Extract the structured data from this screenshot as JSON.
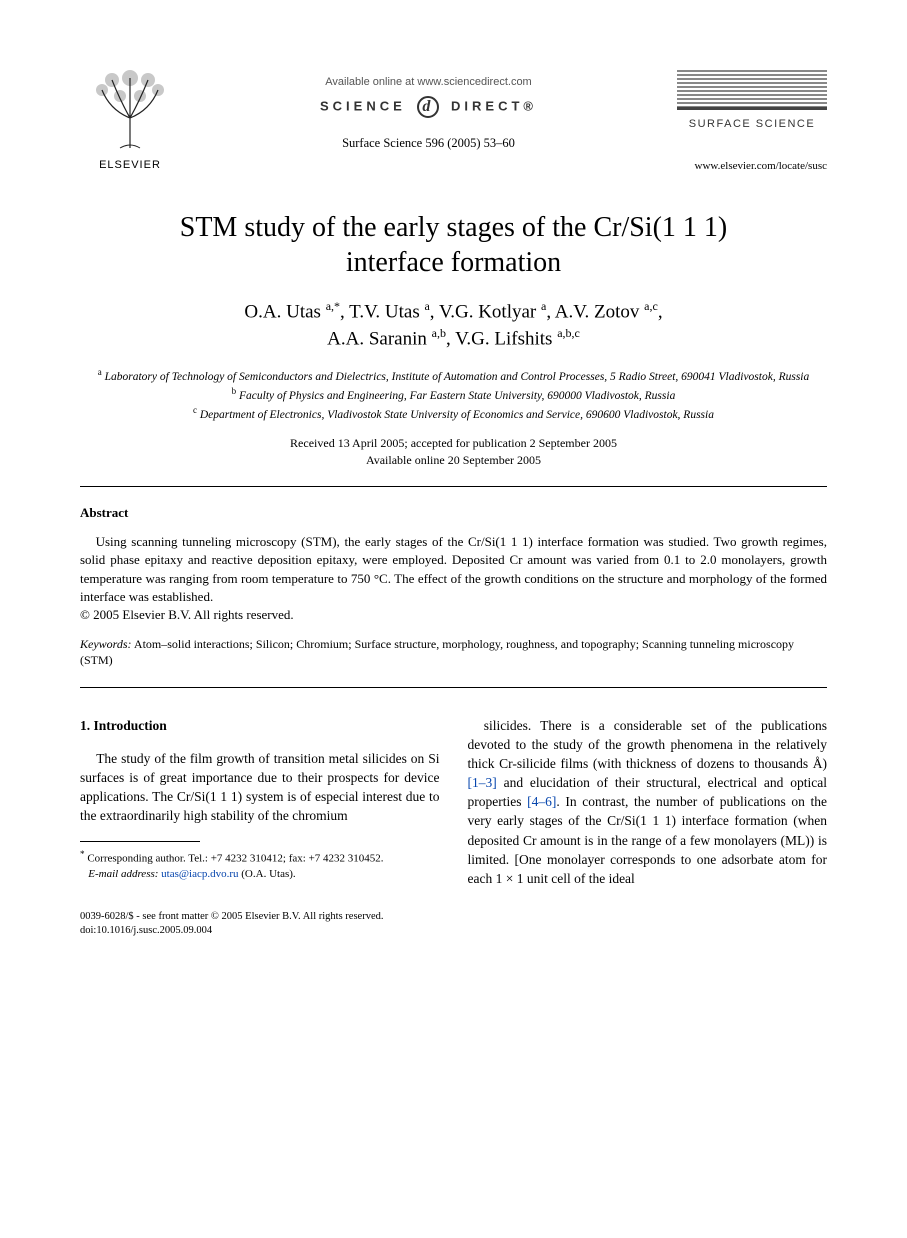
{
  "header": {
    "publisher_label": "ELSEVIER",
    "available_online": "Available online at www.sciencedirect.com",
    "science_direct_left": "SCIENCE",
    "science_direct_right": "DIRECT®",
    "sd_glyph": "d",
    "journal_ref": "Surface Science 596 (2005) 53–60",
    "journal_box_name": "SURFACE SCIENCE",
    "journal_url": "www.elsevier.com/locate/susc"
  },
  "title": {
    "line1": "STM study of the early stages of the Cr/Si(1 1 1)",
    "line2": "interface formation"
  },
  "authors_html": "O.A. Utas <sup>a,*</sup>, T.V. Utas <sup>a</sup>, V.G. Kotlyar <sup>a</sup>, A.V. Zotov <sup>a,c</sup>,<br>A.A. Saranin <sup>a,b</sup>, V.G. Lifshits <sup>a,b,c</sup>",
  "affiliations": {
    "a": "Laboratory of Technology of Semiconductors and Dielectrics, Institute of Automation and Control Processes, 5 Radio Street, 690041 Vladivostok, Russia",
    "b": "Faculty of Physics and Engineering, Far Eastern State University, 690000 Vladivostok, Russia",
    "c": "Department of Electronics, Vladivostok State University of Economics and Service, 690600 Vladivostok, Russia"
  },
  "dates": {
    "line1": "Received 13 April 2005; accepted for publication 2 September 2005",
    "line2": "Available online 20 September 2005"
  },
  "abstract": {
    "heading": "Abstract",
    "body": "Using scanning tunneling microscopy (STM), the early stages of the Cr/Si(1 1 1) interface formation was studied. Two growth regimes, solid phase epitaxy and reactive deposition epitaxy, were employed. Deposited Cr amount was varied from 0.1 to 2.0 monolayers, growth temperature was ranging from room temperature to 750 °C. The effect of the growth conditions on the structure and morphology of the formed interface was established.",
    "copyright": "© 2005 Elsevier B.V. All rights reserved."
  },
  "keywords": {
    "label": "Keywords:",
    "text": "Atom–solid interactions; Silicon; Chromium; Surface structure, morphology, roughness, and topography; Scanning tunneling microscopy (STM)"
  },
  "section1": {
    "heading": "1. Introduction",
    "col_left": "The study of the film growth of transition metal silicides on Si surfaces is of great importance due to their prospects for device applications. The Cr/Si(1 1 1) system is of especial interest due to the extraordinarily high stability of the chromium",
    "col_right_pre": "silicides. There is a considerable set of the publications devoted to the study of the growth phenomena in the relatively thick Cr-silicide films (with thickness of dozens to thousands Å) ",
    "ref1": "[1–3]",
    "col_right_mid": " and elucidation of their structural, electrical and optical properties ",
    "ref2": "[4–6]",
    "col_right_post": ". In contrast, the number of publications on the very early stages of the Cr/Si(1 1 1) interface formation (when deposited Cr amount is in the range of a few monolayers (ML)) is limited. [One monolayer corresponds to one adsorbate atom for each 1 × 1 unit cell of the ideal"
  },
  "footnote": {
    "corr": "Corresponding author. Tel.: +7 4232 310412; fax: +7 4232 310452.",
    "email_label": "E-mail address:",
    "email": "utas@iacp.dvo.ru",
    "email_attr": "(O.A. Utas)."
  },
  "bottom": {
    "front_matter": "0039-6028/$ - see front matter © 2005 Elsevier B.V. All rights reserved.",
    "doi": "doi:10.1016/j.susc.2005.09.004"
  },
  "colors": {
    "text": "#000000",
    "link": "#0645ad",
    "grey": "#555555",
    "background": "#ffffff"
  }
}
